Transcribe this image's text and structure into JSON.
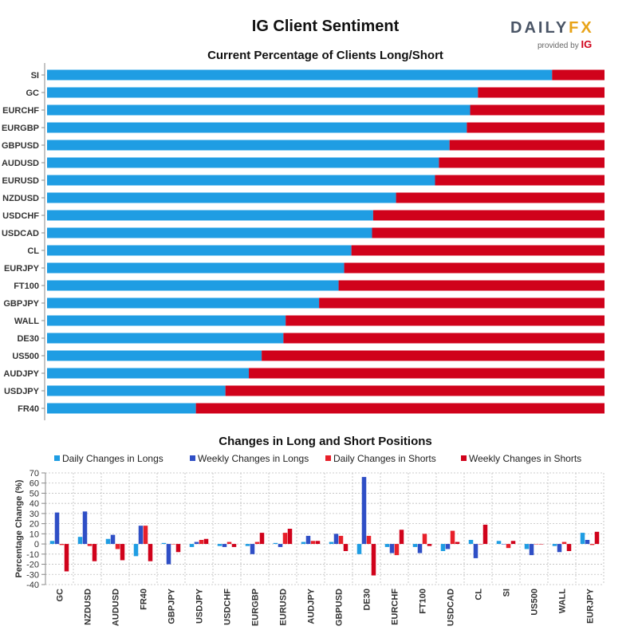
{
  "title": "IG Client Sentiment",
  "logo": {
    "brand_a": "DAILY",
    "brand_b": "FX",
    "provided": "provided by",
    "ig": "IG"
  },
  "colors": {
    "long": "#1f9de3",
    "short": "#d0021b",
    "weekly_long": "#2f4fc6",
    "daily_short": "#e8202a"
  },
  "chart_data": [
    {
      "type": "bar",
      "orientation": "horizontal-stacked",
      "title": "Current Percentage of Clients Long/Short",
      "categories": [
        "SI",
        "GC",
        "EURCHF",
        "EURGBP",
        "GBPUSD",
        "AUDUSD",
        "EURUSD",
        "NZDUSD",
        "USDCHF",
        "USDCAD",
        "CL",
        "EURJPY",
        "FT100",
        "GBPJPY",
        "WALL",
        "DE30",
        "US500",
        "AUDJPY",
        "USDJPY",
        "FR40"
      ],
      "series": [
        {
          "values": [
            90.6,
            77.3,
            75.9,
            75.3,
            72.2,
            70.3,
            69.6,
            62.6,
            58.5,
            58.3,
            54.6,
            53.3,
            52.3,
            48.8,
            42.8,
            42.4,
            38.5,
            36.2,
            32.0,
            26.7
          ]
        },
        {
          "values": [
            9.4,
            22.7,
            24.1,
            24.7,
            27.8,
            29.7,
            30.4,
            37.4,
            41.5,
            41.7,
            45.4,
            46.7,
            47.7,
            51.2,
            57.2,
            57.6,
            61.5,
            63.8,
            68.0,
            73.3
          ]
        }
      ],
      "xlim": [
        0,
        100
      ]
    },
    {
      "type": "bar",
      "title": "Changes in Long and Short Positions",
      "ylabel": "Percentage Change (%)",
      "ylim": [
        -40,
        70
      ],
      "yticks": [
        -40,
        -30,
        -20,
        -10,
        0,
        10,
        20,
        30,
        40,
        50,
        60,
        70
      ],
      "grid": true,
      "legend_position": "top",
      "categories": [
        "GC",
        "NZDUSD",
        "AUDUSD",
        "FR40",
        "GBPJPY",
        "USDJPY",
        "USDCHF",
        "EURGBP",
        "EURUSD",
        "AUDJPY",
        "GBPUSD",
        "DE30",
        "EURCHF",
        "FT100",
        "USDCAD",
        "CL",
        "SI",
        "US500",
        "WALL",
        "EURJPY"
      ],
      "series": [
        {
          "name": "Daily Changes in Longs",
          "values": [
            3,
            7,
            5,
            -12,
            1,
            -3,
            -2,
            -2,
            1,
            2,
            2,
            -10,
            -3,
            -3,
            -7,
            4,
            3,
            -5,
            -2,
            11
          ]
        },
        {
          "name": "Weekly Changes in Longs",
          "values": [
            31,
            32,
            9,
            18,
            -20,
            2,
            -3,
            -10,
            -3,
            8,
            10,
            66,
            -9,
            -9,
            -5,
            -14,
            0,
            -11,
            -8,
            4
          ]
        },
        {
          "name": "Daily Changes in Shorts",
          "values": [
            -1,
            -2,
            -5,
            18,
            0,
            4,
            2,
            2,
            11,
            3,
            8,
            8,
            -11,
            10,
            13,
            0,
            -4,
            0,
            2,
            -1
          ]
        },
        {
          "name": "Weekly Changes in Shorts",
          "values": [
            -27,
            -17,
            -16,
            -17,
            -8,
            5,
            -3,
            11,
            15,
            3,
            -7,
            -31,
            14,
            -2,
            2,
            19,
            3,
            0,
            -7,
            12
          ]
        }
      ]
    }
  ]
}
